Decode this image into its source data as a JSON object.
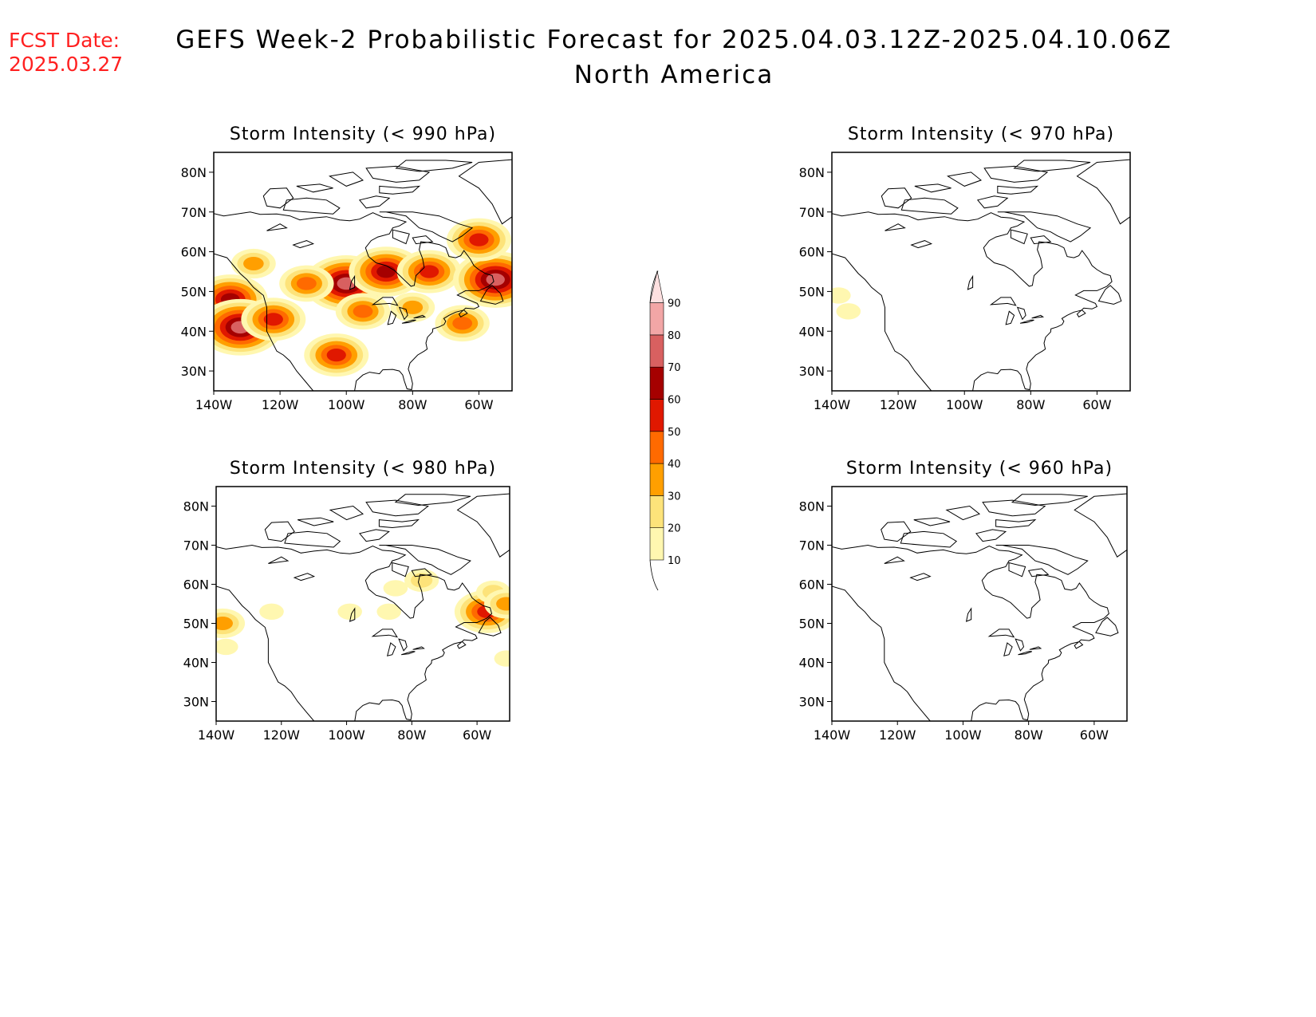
{
  "header": {
    "fcst_label": "FCST Date:",
    "fcst_date": "2025.03.27",
    "title_line1": "GEFS Week-2 Probabilistic Forecast for 2025.04.03.12Z-2025.04.10.06Z",
    "title_line2": "North America"
  },
  "colors": {
    "fcst_text": "#ff2020",
    "levels": [
      "#fff7b0",
      "#fde37a",
      "#ff9f00",
      "#ff6a00",
      "#e01800",
      "#a50000",
      "#d86060",
      "#f2a6a6",
      "#fde0e0"
    ]
  },
  "colorbar": {
    "labels": [
      "10",
      "20",
      "30",
      "40",
      "50",
      "60",
      "70",
      "80",
      "90"
    ]
  },
  "axes": {
    "lon_ticks": [
      "140W",
      "120W",
      "100W",
      "80W",
      "60W"
    ],
    "lat_ticks": [
      "30N",
      "40N",
      "50N",
      "60N",
      "70N",
      "80N"
    ]
  },
  "chart_data": [
    {
      "type": "heatmap",
      "title": "Storm Intensity (< 990 hPa)",
      "xlim": [
        -140,
        -50
      ],
      "ylim": [
        25,
        85
      ],
      "blobs": [
        {
          "lon": -100,
          "lat": 52,
          "value": 70
        },
        {
          "lon": -88,
          "lat": 55,
          "value": 65
        },
        {
          "lon": -135,
          "lat": 48,
          "value": 60
        },
        {
          "lon": -132,
          "lat": 41,
          "value": 75
        },
        {
          "lon": -122,
          "lat": 43,
          "value": 55
        },
        {
          "lon": -75,
          "lat": 55,
          "value": 55
        },
        {
          "lon": -55,
          "lat": 53,
          "value": 70
        },
        {
          "lon": -60,
          "lat": 63,
          "value": 55
        },
        {
          "lon": -112,
          "lat": 52,
          "value": 45
        },
        {
          "lon": -95,
          "lat": 45,
          "value": 40
        },
        {
          "lon": -65,
          "lat": 42,
          "value": 40
        },
        {
          "lon": -128,
          "lat": 57,
          "value": 35
        },
        {
          "lon": -80,
          "lat": 46,
          "value": 30
        },
        {
          "lon": -103,
          "lat": 34,
          "value": 55
        }
      ]
    },
    {
      "type": "heatmap",
      "title": "Storm Intensity (< 970 hPa)",
      "xlim": [
        -140,
        -50
      ],
      "ylim": [
        25,
        85
      ],
      "blobs": [
        {
          "lon": -138,
          "lat": 49,
          "value": 15
        },
        {
          "lon": -135,
          "lat": 45,
          "value": 12
        }
      ]
    },
    {
      "type": "heatmap",
      "title": "Storm Intensity (< 980 hPa)",
      "xlim": [
        -140,
        -50
      ],
      "ylim": [
        25,
        85
      ],
      "blobs": [
        {
          "lon": -138,
          "lat": 50,
          "value": 35
        },
        {
          "lon": -137,
          "lat": 44,
          "value": 18
        },
        {
          "lon": -123,
          "lat": 53,
          "value": 12
        },
        {
          "lon": -77,
          "lat": 61,
          "value": 25
        },
        {
          "lon": -85,
          "lat": 59,
          "value": 15
        },
        {
          "lon": -87,
          "lat": 53,
          "value": 15
        },
        {
          "lon": -99,
          "lat": 53,
          "value": 12
        },
        {
          "lon": -57,
          "lat": 53,
          "value": 55
        },
        {
          "lon": -55,
          "lat": 58,
          "value": 20
        },
        {
          "lon": -51,
          "lat": 55,
          "value": 30
        },
        {
          "lon": -51,
          "lat": 41,
          "value": 12
        }
      ]
    },
    {
      "type": "heatmap",
      "title": "Storm Intensity (< 960 hPa)",
      "xlim": [
        -140,
        -50
      ],
      "ylim": [
        25,
        85
      ],
      "blobs": []
    }
  ]
}
